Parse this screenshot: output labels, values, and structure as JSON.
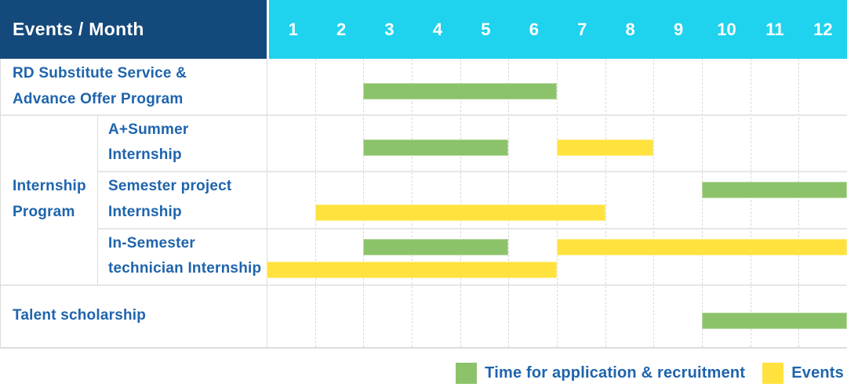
{
  "header": {
    "title": "Events / Month",
    "months": [
      "1",
      "2",
      "3",
      "4",
      "5",
      "6",
      "7",
      "8",
      "9",
      "10",
      "11",
      "12"
    ]
  },
  "colors": {
    "header_navy": "#14497C",
    "header_cyan": "#1FD2ED",
    "bar_green": "#8CC36A",
    "bar_yellow": "#FFE23E",
    "label_blue": "#1E64AD",
    "grid_line": "#DCDCDC"
  },
  "legend": [
    {
      "label": "Time for application & recruitment",
      "color": "#8CC36A"
    },
    {
      "label": "Events",
      "color": "#FFE23E"
    }
  ],
  "chart_data": {
    "type": "gantt",
    "title": "Events / Month",
    "x_axis": {
      "unit": "month",
      "ticks": [
        1,
        2,
        3,
        4,
        5,
        6,
        7,
        8,
        9,
        10,
        11,
        12
      ],
      "range": [
        1,
        12
      ],
      "grid": "dashed-vertical"
    },
    "legend_position": "bottom-right",
    "series_legend": [
      {
        "name": "Time for application & recruitment",
        "color": "#8CC36A"
      },
      {
        "name": "Events",
        "color": "#FFE23E"
      }
    ],
    "group_cell": {
      "label_lines": [
        "Internship",
        "Program"
      ],
      "label": "Internship Program",
      "spans_row_indexes": [
        1,
        3
      ]
    },
    "rows": [
      {
        "group": "",
        "label": "RD Substitute Service & Advance Offer Program",
        "label_lines": [
          "RD Substitute Service &",
          "Advance Offer Program"
        ],
        "bars": [
          {
            "series": "Time for application & recruitment",
            "color": "#8CC36A",
            "start_month": 3,
            "end_month": 6,
            "track": "single"
          }
        ]
      },
      {
        "group": "Internship Program",
        "label": "A+Summer Internship",
        "label_lines": [
          "A+Summer",
          "Internship"
        ],
        "bars": [
          {
            "series": "Time for application & recruitment",
            "color": "#8CC36A",
            "start_month": 3,
            "end_month": 5,
            "track": "single"
          },
          {
            "series": "Events",
            "color": "#FFE23E",
            "start_month": 7,
            "end_month": 8,
            "track": "single"
          }
        ]
      },
      {
        "group": "Internship Program",
        "label": "Semester project Internship",
        "label_lines": [
          "Semester project",
          "Internship"
        ],
        "bars": [
          {
            "series": "Time for application & recruitment",
            "color": "#8CC36A",
            "start_month": 10,
            "end_month": 12,
            "track": "top"
          },
          {
            "series": "Events",
            "color": "#FFE23E",
            "start_month": 2,
            "end_month": 7,
            "track": "bottom"
          }
        ]
      },
      {
        "group": "Internship Program",
        "label": "In-Semester technician Internship",
        "label_lines": [
          "In-Semester",
          "technician Internship"
        ],
        "bars": [
          {
            "series": "Time for application & recruitment",
            "color": "#8CC36A",
            "start_month": 3,
            "end_month": 5,
            "track": "top"
          },
          {
            "series": "Events",
            "color": "#FFE23E",
            "start_month": 7,
            "end_month": 12,
            "track": "top"
          },
          {
            "series": "Events",
            "color": "#FFE23E",
            "start_month": 1,
            "end_month": 6,
            "track": "bottom"
          }
        ]
      },
      {
        "group": "",
        "label": "Talent scholarship",
        "label_lines": [
          "Talent scholarship"
        ],
        "bars": [
          {
            "series": "Time for application & recruitment",
            "color": "#8CC36A",
            "start_month": 10,
            "end_month": 12,
            "track": "single"
          }
        ]
      }
    ]
  }
}
